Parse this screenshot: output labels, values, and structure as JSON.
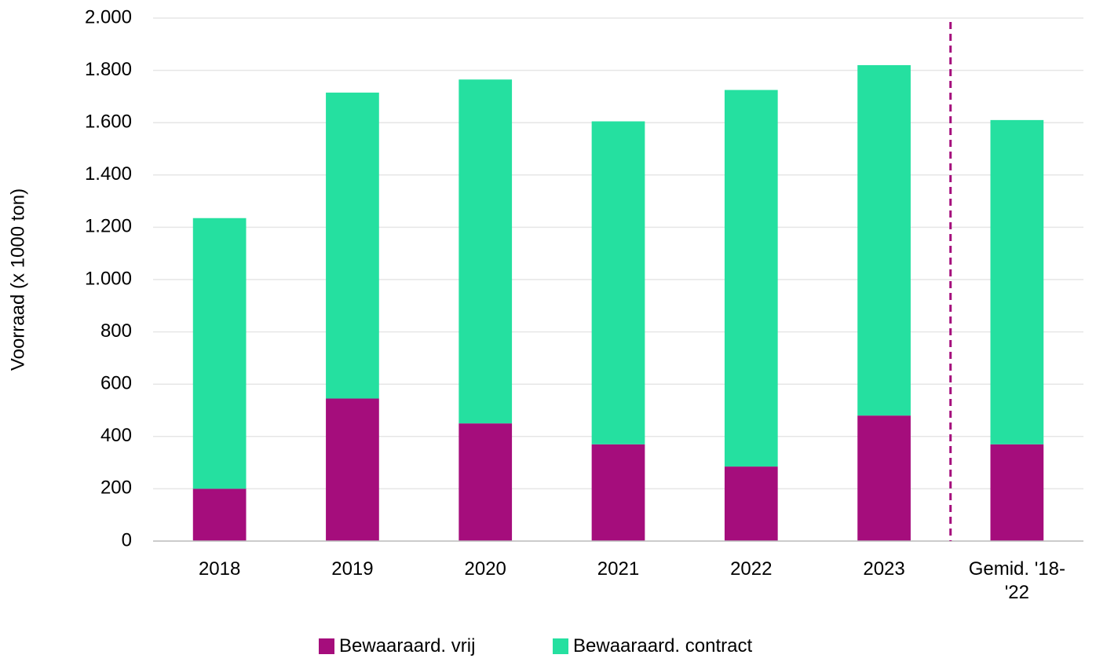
{
  "chart_data": {
    "type": "bar",
    "stacked": true,
    "y_label": "Voorraad (x 1000 ton)",
    "categories": [
      "2018",
      "2019",
      "2020",
      "2021",
      "2022",
      "2023",
      "Gemid. '18-'22"
    ],
    "series": [
      {
        "name": "Bewaaraard. vrij",
        "color": "#a50d7c",
        "values": [
          200,
          545,
          450,
          370,
          285,
          480,
          370
        ]
      },
      {
        "name": "Bewaaraard. contract",
        "color": "#25e0a0",
        "values": [
          1035,
          1170,
          1315,
          1235,
          1440,
          1340,
          1240
        ]
      }
    ],
    "ylim": [
      0,
      2000
    ],
    "yticks": [
      0,
      200,
      400,
      600,
      800,
      {
        "value": 1000,
        "label": "1.000"
      },
      {
        "value": 1200,
        "label": "1.200"
      },
      {
        "value": 1400,
        "label": "1.400"
      },
      {
        "value": 1600,
        "label": "1.600"
      },
      {
        "value": 1800,
        "label": "1.800"
      },
      {
        "value": 2000,
        "label": "2.000"
      }
    ],
    "grid": true,
    "legend": "bottom"
  }
}
